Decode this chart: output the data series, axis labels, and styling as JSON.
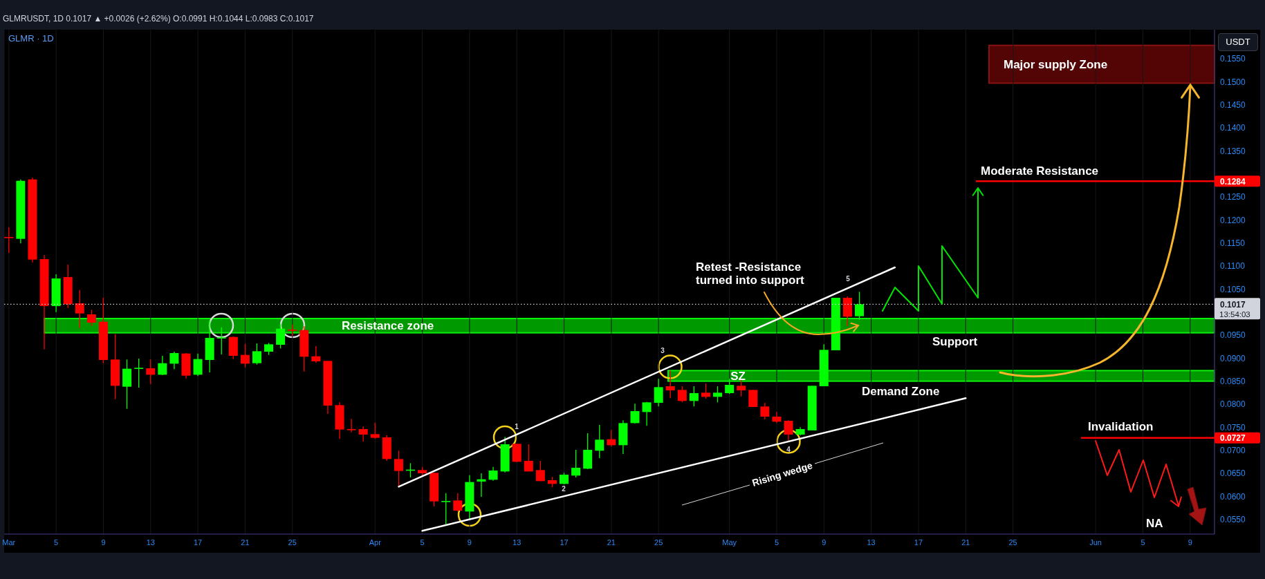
{
  "chart_data": {
    "type": "candlestick",
    "title": "GLMRUSDT, 1D 0.1017 ▲ +0.0026 (+2.62%) O:0.0991 H:0.1044 L:0.0983 C:0.1017",
    "subtitle": "GLMR · 1D",
    "ylabel": "USDT",
    "x": [
      "--03-01",
      "--03-02",
      "--03-03",
      "--03-04",
      "--03-05",
      "--03-06",
      "--03-07",
      "--03-08",
      "--03-09",
      "--03-10",
      "--03-11",
      "--03-12",
      "--03-13",
      "--03-14",
      "--03-15",
      "--03-16",
      "--03-17",
      "--03-18",
      "--03-19",
      "--03-20",
      "--03-21",
      "--03-22",
      "--03-23",
      "--03-24",
      "--03-25",
      "--03-26",
      "--03-27",
      "--03-28",
      "--03-29",
      "--03-30",
      "--03-31",
      "--04-01",
      "--04-02",
      "--04-03",
      "--04-04",
      "--04-05",
      "--04-06",
      "--04-07",
      "--04-08",
      "--04-09",
      "--04-10",
      "--04-11",
      "--04-12",
      "--04-13",
      "--04-14",
      "--04-15",
      "--04-16",
      "--04-17",
      "--04-18",
      "--04-19",
      "--04-20",
      "--04-21",
      "--04-22",
      "--04-23",
      "--04-24",
      "--04-25",
      "--04-26",
      "--04-27",
      "--04-28",
      "--04-29",
      "--04-30",
      "--05-01",
      "--05-02",
      "--05-03",
      "--05-04",
      "--05-05",
      "--05-06",
      "--05-07",
      "--05-08",
      "--05-09",
      "--05-10",
      "--05-11",
      "--05-12"
    ],
    "ohlc": [
      [
        0.1163,
        0.1184,
        0.1128,
        0.1162
      ],
      [
        0.1159,
        0.1288,
        0.1149,
        0.1285
      ],
      [
        0.1288,
        0.1292,
        0.1108,
        0.1114
      ],
      [
        0.1115,
        0.1124,
        0.0919,
        0.1013
      ],
      [
        0.1013,
        0.1082,
        0.1,
        0.1073
      ],
      [
        0.1076,
        0.1103,
        0.1009,
        0.1017
      ],
      [
        0.1019,
        0.1048,
        0.0965,
        0.0997
      ],
      [
        0.0995,
        0.1005,
        0.097,
        0.0977
      ],
      [
        0.0979,
        0.1031,
        0.0889,
        0.0896
      ],
      [
        0.0897,
        0.0952,
        0.0811,
        0.084
      ],
      [
        0.0838,
        0.0897,
        0.079,
        0.0877
      ],
      [
        0.0878,
        0.0899,
        0.0836,
        0.0879
      ],
      [
        0.0878,
        0.0897,
        0.0844,
        0.0864
      ],
      [
        0.0864,
        0.0905,
        0.0863,
        0.0889
      ],
      [
        0.0888,
        0.0914,
        0.0876,
        0.0911
      ],
      [
        0.091,
        0.0911,
        0.0856,
        0.0862
      ],
      [
        0.0864,
        0.091,
        0.0861,
        0.0898
      ],
      [
        0.0896,
        0.0982,
        0.0869,
        0.0944
      ],
      [
        0.0944,
        0.0967,
        0.0908,
        0.0945
      ],
      [
        0.0946,
        0.0947,
        0.0898,
        0.0905
      ],
      [
        0.0907,
        0.0931,
        0.088,
        0.0888
      ],
      [
        0.0889,
        0.0932,
        0.0886,
        0.0915
      ],
      [
        0.0914,
        0.0933,
        0.0907,
        0.093
      ],
      [
        0.0929,
        0.0974,
        0.0921,
        0.0964
      ],
      [
        0.0962,
        0.0973,
        0.0948,
        0.0961
      ],
      [
        0.0961,
        0.0969,
        0.0871,
        0.0903
      ],
      [
        0.0904,
        0.0926,
        0.089,
        0.0893
      ],
      [
        0.0894,
        0.0894,
        0.0779,
        0.0797
      ],
      [
        0.0798,
        0.0804,
        0.0725,
        0.0745
      ],
      [
        0.0746,
        0.0768,
        0.0739,
        0.0745
      ],
      [
        0.0746,
        0.0752,
        0.0719,
        0.0734
      ],
      [
        0.0735,
        0.076,
        0.0725,
        0.0727
      ],
      [
        0.0728,
        0.0733,
        0.0677,
        0.0681
      ],
      [
        0.0681,
        0.0699,
        0.062,
        0.0655
      ],
      [
        0.0657,
        0.0672,
        0.0641,
        0.0658
      ],
      [
        0.0657,
        0.0664,
        0.0644,
        0.065
      ],
      [
        0.0651,
        0.0651,
        0.0578,
        0.0589
      ],
      [
        0.0589,
        0.0607,
        0.0537,
        0.059
      ],
      [
        0.0591,
        0.0607,
        0.0567,
        0.0569
      ],
      [
        0.0567,
        0.0646,
        0.0548,
        0.0631
      ],
      [
        0.0632,
        0.065,
        0.0599,
        0.0637
      ],
      [
        0.0636,
        0.0664,
        0.0634,
        0.0656
      ],
      [
        0.0654,
        0.0729,
        0.0652,
        0.0713
      ],
      [
        0.0714,
        0.0714,
        0.0674,
        0.0675
      ],
      [
        0.0677,
        0.0713,
        0.0654,
        0.0654
      ],
      [
        0.0657,
        0.0677,
        0.0633,
        0.0633
      ],
      [
        0.0635,
        0.0642,
        0.062,
        0.0627
      ],
      [
        0.0627,
        0.0651,
        0.0626,
        0.0647
      ],
      [
        0.0645,
        0.0701,
        0.0641,
        0.0662
      ],
      [
        0.066,
        0.0737,
        0.0659,
        0.0701
      ],
      [
        0.0699,
        0.0755,
        0.0683,
        0.0723
      ],
      [
        0.0724,
        0.0744,
        0.0708,
        0.0711
      ],
      [
        0.0711,
        0.0765,
        0.0692,
        0.0759
      ],
      [
        0.0759,
        0.0801,
        0.0758,
        0.0785
      ],
      [
        0.0783,
        0.0805,
        0.0753,
        0.0804
      ],
      [
        0.0803,
        0.0855,
        0.0795,
        0.0837
      ],
      [
        0.0839,
        0.0873,
        0.0813,
        0.083
      ],
      [
        0.0831,
        0.0839,
        0.0804,
        0.0807
      ],
      [
        0.0807,
        0.0839,
        0.0795,
        0.0824
      ],
      [
        0.0825,
        0.0845,
        0.0812,
        0.0816
      ],
      [
        0.0816,
        0.0839,
        0.0804,
        0.0825
      ],
      [
        0.0824,
        0.0855,
        0.0822,
        0.0842
      ],
      [
        0.084,
        0.0855,
        0.0817,
        0.083
      ],
      [
        0.0831,
        0.0831,
        0.0794,
        0.0794
      ],
      [
        0.0795,
        0.0803,
        0.0767,
        0.0773
      ],
      [
        0.0773,
        0.0783,
        0.0759,
        0.0762
      ],
      [
        0.0764,
        0.0765,
        0.0717,
        0.0734
      ],
      [
        0.0734,
        0.075,
        0.0732,
        0.0746
      ],
      [
        0.0743,
        0.084,
        0.0743,
        0.084
      ],
      [
        0.0839,
        0.093,
        0.0839,
        0.0918
      ],
      [
        0.0917,
        0.1031,
        0.0917,
        0.1031
      ],
      [
        0.1031,
        0.1034,
        0.0969,
        0.099
      ],
      [
        0.0991,
        0.1044,
        0.0983,
        0.1017
      ]
    ],
    "colors": [
      "#ff0000",
      "#00ff00",
      "#ff0000",
      "#ff0000",
      "#00ff00",
      "#ff0000",
      "#ff0000",
      "#ff0000",
      "#ff0000",
      "#ff0000",
      "#00ff00",
      "#00ff00",
      "#ff0000",
      "#00ff00",
      "#00ff00",
      "#ff0000",
      "#00ff00",
      "#00ff00",
      "#00ff00",
      "#ff0000",
      "#ff0000",
      "#00ff00",
      "#00ff00",
      "#00ff00",
      "#ff0000",
      "#ff0000",
      "#ff0000",
      "#ff0000",
      "#ff0000",
      "#ff0000",
      "#ff0000",
      "#ff0000",
      "#ff0000",
      "#ff0000",
      "#00ff00",
      "#ff0000",
      "#ff0000",
      "#00ff00",
      "#ff0000",
      "#00ff00",
      "#00ff00",
      "#00ff00",
      "#00ff00",
      "#ff0000",
      "#ff0000",
      "#ff0000",
      "#ff0000",
      "#00ff00",
      "#00ff00",
      "#00ff00",
      "#00ff00",
      "#ff0000",
      "#00ff00",
      "#00ff00",
      "#00ff00",
      "#00ff00",
      "#ff0000",
      "#ff0000",
      "#00ff00",
      "#ff0000",
      "#00ff00",
      "#00ff00",
      "#ff0000",
      "#ff0000",
      "#ff0000",
      "#ff0000",
      "#ff0000",
      "#00ff00",
      "#00ff00",
      "#00ff00",
      "#00ff00",
      "#ff0000",
      "#00ff00"
    ],
    "series": [
      {
        "type": "line",
        "color": "#ffffff",
        "x": [
          "--04-03",
          "--05-15"
        ],
        "values": [
          0.0621,
          0.1097
        ]
      },
      {
        "type": "line",
        "color": "#ffffff",
        "x": [
          "--04-05",
          "--05-21"
        ],
        "values": [
          0.0525,
          0.0813
        ]
      }
    ],
    "xlim": [
      "--02-28T14:24",
      "--06-11T01:30"
    ],
    "xticks": [
      {
        "value": "--03-01",
        "label": "Mar"
      },
      {
        "value": "--03-05",
        "label": "5"
      },
      {
        "value": "--03-09",
        "label": "9"
      },
      {
        "value": "--03-13",
        "label": "13"
      },
      {
        "value": "--03-17",
        "label": "17"
      },
      {
        "value": "--03-21",
        "label": "21"
      },
      {
        "value": "--03-25",
        "label": "25"
      },
      {
        "value": "--04-01",
        "label": "Apr"
      },
      {
        "value": "--04-05",
        "label": "5"
      },
      {
        "value": "--04-09",
        "label": "9"
      },
      {
        "value": "--04-13",
        "label": "13"
      },
      {
        "value": "--04-17",
        "label": "17"
      },
      {
        "value": "--04-21",
        "label": "21"
      },
      {
        "value": "--04-25",
        "label": "25"
      },
      {
        "value": "--05-01",
        "label": "May"
      },
      {
        "value": "--05-05",
        "label": "5"
      },
      {
        "value": "--05-09",
        "label": "9"
      },
      {
        "value": "--05-13",
        "label": "13"
      },
      {
        "value": "--05-17",
        "label": "17"
      },
      {
        "value": "--05-21",
        "label": "21"
      },
      {
        "value": "--05-25",
        "label": "25"
      },
      {
        "value": "--06-01",
        "label": "Jun"
      },
      {
        "value": "--06-05",
        "label": "5"
      },
      {
        "value": "--06-09",
        "label": "9"
      }
    ],
    "ylim": [
      0.0518,
      0.1613
    ],
    "yticks": [
      {
        "value": 0.055,
        "label": "0.0550"
      },
      {
        "value": 0.06,
        "label": "0.0600"
      },
      {
        "value": 0.065,
        "label": "0.0650"
      },
      {
        "value": 0.07,
        "label": "0.0700"
      },
      0.0727,
      {
        "value": 0.075,
        "label": "0.0750"
      },
      {
        "value": 0.08,
        "label": "0.0800"
      },
      {
        "value": 0.085,
        "label": "0.0850"
      },
      {
        "value": 0.09,
        "label": "0.0900"
      },
      {
        "value": 0.095,
        "label": "0.0950"
      },
      0.1017,
      {
        "value": 0.105,
        "label": "0.1050"
      },
      {
        "value": 0.11,
        "label": "0.1100"
      },
      {
        "value": 0.115,
        "label": "0.1150"
      },
      {
        "value": 0.12,
        "label": "0.1200"
      },
      {
        "value": 0.125,
        "label": "0.1250"
      },
      0.1284,
      {
        "value": 0.135,
        "label": "0.1350"
      },
      {
        "value": 0.14,
        "label": "0.1400"
      },
      {
        "value": 0.145,
        "label": "0.1450"
      },
      {
        "value": 0.15,
        "label": "0.1500"
      },
      {
        "value": 0.155,
        "label": "0.1550"
      }
    ],
    "grid": "x",
    "ref_lines": [
      {
        "axis": "y",
        "value": 0.1284,
        "label": "Moderate Resistance",
        "color": "#ff0000"
      },
      {
        "axis": "y",
        "value": 0.0727,
        "label": "Invalidation",
        "color": "#ff0000"
      },
      {
        "axis": "y",
        "value": 0.1017,
        "color": "#d1d4dc",
        "line_style": "dotted"
      }
    ],
    "bands": [
      {
        "axis": "y",
        "from": 0.0955,
        "to": 0.0986,
        "label": "Resistance zone",
        "color": "#009900"
      },
      {
        "axis": "y",
        "from": 0.085,
        "to": 0.0873,
        "label": "SZ",
        "color": "#009900"
      },
      {
        "axis": "y",
        "from": 0.1497,
        "to": 0.1579,
        "label": "Major supply Zone",
        "color": "#530505"
      }
    ],
    "annotations": [
      "Support",
      "Demand Zone",
      "Retest -Resistance turned into support",
      "Rising wedge",
      "NA",
      "1",
      "2",
      "3",
      "4",
      "5",
      "13:54:03"
    ]
  }
}
